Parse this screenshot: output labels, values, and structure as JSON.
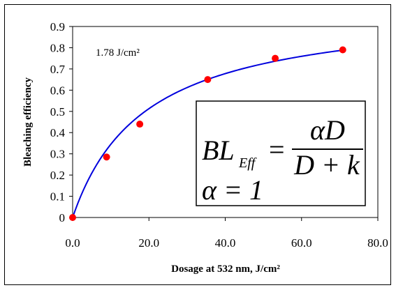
{
  "chart_data": {
    "type": "scatter",
    "xlabel": "Dosage at 532 nm, J/cm²",
    "ylabel": "Bleaching efficiency",
    "xlim": [
      0,
      80
    ],
    "ylim": [
      0,
      0.9
    ],
    "x_ticks": [
      "0.0",
      "20.0",
      "40.0",
      "60.0",
      "80.0"
    ],
    "y_ticks": [
      "0",
      "0.1",
      "0.2",
      "0.3",
      "0.4",
      "0.5",
      "0.6",
      "0.7",
      "0.8",
      "0.9"
    ],
    "annotation": "1.78 J/cm²",
    "grid": false,
    "series": [
      {
        "kind": "points",
        "color": "#ff0000",
        "x": [
          0,
          8.9,
          17.6,
          35.4,
          53.1,
          70.8
        ],
        "y": [
          0.0,
          0.285,
          0.44,
          0.65,
          0.75,
          0.79
        ]
      },
      {
        "kind": "fit-line",
        "color": "#0000dd",
        "alpha": 1,
        "k": 19
      }
    ],
    "equation": {
      "lhs_main": "BL",
      "lhs_sub": "Eff",
      "equals": "=",
      "numerator": "αD",
      "denominator": "D + k",
      "alpha_line": "α = 1"
    }
  }
}
